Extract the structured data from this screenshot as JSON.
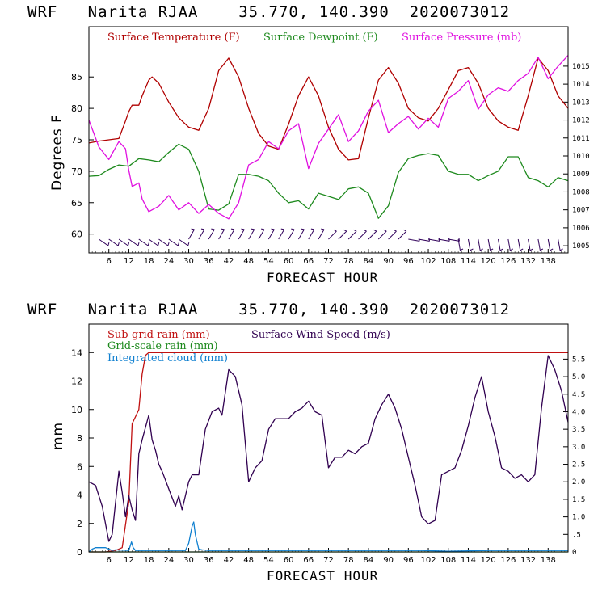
{
  "colors": {
    "temperature": "#b00000",
    "dewpoint": "#1e8a1e",
    "pressure": "#e010e0",
    "subgrid": "#c01010",
    "gridscale": "#1e8a1e",
    "cloud": "#1080d0",
    "wind": "#300050",
    "wind_barb": "#30005a"
  },
  "chart_data": [
    {
      "type": "line",
      "title": "WRF   Narita RJAA    35.770, 140.390  2020073012",
      "xlabel": "FORECAST HOUR",
      "ylabel": "Degrees F",
      "xlim": [
        0,
        144
      ],
      "ylim": [
        57,
        93
      ],
      "xticks": [
        6,
        12,
        18,
        24,
        30,
        36,
        42,
        48,
        54,
        60,
        66,
        72,
        78,
        84,
        90,
        96,
        102,
        108,
        114,
        120,
        126,
        132,
        138
      ],
      "yticks": [
        60,
        65,
        70,
        75,
        80,
        85
      ],
      "y2lim": [
        1004.6,
        1017.2
      ],
      "y2ticks": [
        1005,
        1006,
        1007,
        1008,
        1009,
        1010,
        1011,
        1012,
        1013,
        1014,
        1015
      ],
      "legend": [
        "Surface Temperature (F)",
        "Surface Dewpoint (F)",
        "Surface Pressure (mb)"
      ],
      "series": [
        {
          "name": "Surface Temperature (F)",
          "axis": "left",
          "x": [
            0,
            3,
            6,
            9,
            11,
            12,
            13,
            15,
            16,
            18,
            19,
            21,
            24,
            27,
            30,
            33,
            36,
            39,
            42,
            45,
            48,
            51,
            54,
            57,
            60,
            63,
            66,
            69,
            72,
            75,
            78,
            81,
            84,
            87,
            90,
            93,
            96,
            99,
            102,
            105,
            108,
            111,
            114,
            117,
            120,
            123,
            126,
            129,
            132,
            135,
            138,
            141,
            144
          ],
          "y": [
            74.5,
            74.8,
            75,
            75.2,
            78,
            79.5,
            80.5,
            80.5,
            82,
            84.5,
            85,
            84,
            81,
            78.5,
            77,
            76.5,
            80,
            86,
            88,
            85,
            80,
            76,
            74,
            73.5,
            77.5,
            82,
            85,
            82,
            77,
            73.5,
            71.8,
            72,
            78.5,
            84.5,
            86.5,
            84,
            80,
            78.5,
            78,
            80,
            83,
            86,
            86.5,
            84,
            80,
            78,
            77,
            76.5,
            82,
            88,
            86,
            82,
            80
          ]
        },
        {
          "name": "Surface Dewpoint (F)",
          "axis": "left",
          "x": [
            0,
            3,
            6,
            9,
            12,
            15,
            18,
            21,
            24,
            27,
            30,
            33,
            36,
            39,
            42,
            45,
            48,
            51,
            54,
            57,
            60,
            63,
            66,
            69,
            72,
            75,
            78,
            81,
            84,
            87,
            90,
            93,
            96,
            99,
            102,
            105,
            108,
            111,
            114,
            117,
            120,
            123,
            126,
            129,
            132,
            135,
            138,
            141,
            144
          ],
          "y": [
            69.2,
            69.3,
            70.3,
            71,
            70.8,
            72,
            71.8,
            71.5,
            73,
            74.3,
            73.5,
            70,
            64,
            63.8,
            64.8,
            69.5,
            69.5,
            69.2,
            68.5,
            66.5,
            65,
            65.3,
            64,
            66.5,
            66,
            65.5,
            67.2,
            67.5,
            66.5,
            62.5,
            64.5,
            69.8,
            72,
            72.5,
            72.8,
            72.5,
            70,
            69.5,
            69.5,
            68.5,
            69.3,
            70,
            72.3,
            72.3,
            69,
            68.5,
            67.5,
            69,
            68.5
          ]
        },
        {
          "name": "Surface Pressure (mb)",
          "axis": "right",
          "x": [
            0,
            3,
            6,
            9,
            11,
            12,
            13,
            15,
            16,
            18,
            21,
            24,
            27,
            30,
            33,
            36,
            39,
            42,
            45,
            48,
            51,
            54,
            57,
            60,
            63,
            66,
            69,
            72,
            75,
            78,
            81,
            84,
            87,
            90,
            93,
            96,
            99,
            102,
            105,
            108,
            111,
            114,
            117,
            120,
            123,
            126,
            129,
            132,
            135,
            138,
            141,
            144
          ],
          "y": [
            1012,
            1010.5,
            1009.8,
            1010.8,
            1010.4,
            1009.2,
            1008.3,
            1008.5,
            1007.6,
            1006.9,
            1007.2,
            1007.8,
            1007,
            1007.4,
            1006.8,
            1007.3,
            1006.8,
            1006.5,
            1007.4,
            1009.5,
            1009.8,
            1010.8,
            1010.4,
            1011.4,
            1011.8,
            1009.3,
            1010.7,
            1011.5,
            1012.3,
            1010.8,
            1011.4,
            1012.5,
            1013.1,
            1011.3,
            1011.8,
            1012.2,
            1011.5,
            1012.1,
            1011.6,
            1013.2,
            1013.6,
            1014.2,
            1012.6,
            1013.4,
            1013.8,
            1013.6,
            1014.2,
            1014.6,
            1015.5,
            1014.3,
            1015,
            1015.6
          ]
        }
      ]
    },
    {
      "type": "line",
      "title": "WRF   Narita RJAA    35.770, 140.390  2020073012",
      "xlabel": "FORECAST HOUR",
      "ylabel": "mm",
      "xlim": [
        0,
        144
      ],
      "ylim": [
        0,
        16
      ],
      "xticks": [
        6,
        12,
        18,
        24,
        30,
        36,
        42,
        48,
        54,
        60,
        66,
        72,
        78,
        84,
        90,
        96,
        102,
        108,
        114,
        120,
        126,
        132,
        138
      ],
      "yticks": [
        0,
        2,
        4,
        6,
        8,
        10,
        12,
        14
      ],
      "y2lim": [
        0,
        6.5
      ],
      "y2ticks": [
        "0",
        ".5",
        "1.0",
        "1.5",
        "2.0",
        "2.5",
        "3.0",
        "3.5",
        "4.0",
        "4.5",
        "5.0",
        "5.5"
      ],
      "legend": [
        "Sub-grid rain (mm)",
        "Grid-scale rain (mm)",
        "Integrated cloud (mm)",
        "Surface Wind Speed (m/s)"
      ],
      "series": [
        {
          "name": "Sub-grid rain (mm)",
          "axis": "left",
          "x": [
            0,
            5,
            8,
            10,
            12,
            13,
            14,
            15,
            16,
            17,
            18,
            144
          ],
          "y": [
            0,
            0,
            0.1,
            0.3,
            3.5,
            9,
            9.5,
            10,
            12.5,
            13.8,
            14,
            14
          ]
        },
        {
          "name": "Grid-scale rain (mm)",
          "axis": "left",
          "x": [
            0,
            144
          ],
          "y": [
            0,
            0
          ]
        },
        {
          "name": "Integrated cloud (mm)",
          "axis": "left",
          "x": [
            0,
            1,
            2,
            5,
            6,
            7,
            8,
            12,
            12.8,
            13.3,
            14,
            15,
            29,
            30,
            31,
            31.5,
            32,
            33,
            34,
            36,
            48,
            60,
            84,
            100,
            108,
            120,
            144
          ],
          "y": [
            0,
            0.2,
            0.3,
            0.3,
            0.2,
            0.1,
            0.15,
            0.1,
            0.7,
            0.3,
            0.1,
            0.1,
            0.1,
            0.6,
            1.8,
            2.1,
            1.2,
            0.2,
            0.15,
            0.1,
            0.1,
            0.1,
            0.1,
            0.1,
            0.05,
            0.1,
            0.1
          ]
        },
        {
          "name": "Surface Wind Speed (m/s)",
          "axis": "right",
          "x": [
            0,
            2,
            4,
            6,
            7,
            8,
            9,
            10,
            11,
            12,
            13,
            14,
            15,
            16,
            18,
            19,
            20,
            21,
            22,
            24,
            26,
            27,
            28,
            29,
            30,
            31,
            33,
            35,
            37,
            39,
            40,
            42,
            44,
            46,
            48,
            50,
            52,
            54,
            56,
            58,
            60,
            62,
            64,
            66,
            68,
            70,
            72,
            74,
            76,
            78,
            80,
            82,
            84,
            86,
            88,
            90,
            92,
            94,
            96,
            98,
            100,
            102,
            104,
            106,
            108,
            110,
            112,
            114,
            116,
            118,
            120,
            122,
            124,
            126,
            128,
            130,
            132,
            134,
            136,
            138,
            140,
            142,
            144
          ],
          "y": [
            2,
            1.9,
            1.3,
            0.3,
            0.5,
            1.4,
            2.3,
            1.7,
            1,
            1.6,
            1.2,
            0.9,
            2.8,
            3.2,
            3.9,
            3.2,
            2.9,
            2.5,
            2.3,
            1.8,
            1.3,
            1.6,
            1.2,
            1.6,
            2,
            2.2,
            2.2,
            3.5,
            4,
            4.1,
            3.9,
            5.2,
            5,
            4.2,
            2,
            2.4,
            2.6,
            3.5,
            3.8,
            3.8,
            3.8,
            4,
            4.1,
            4.3,
            4,
            3.9,
            2.4,
            2.7,
            2.7,
            2.9,
            2.8,
            3,
            3.1,
            3.8,
            4.2,
            4.5,
            4.1,
            3.5,
            2.7,
            1.9,
            1,
            0.8,
            0.9,
            2.2,
            2.3,
            2.4,
            2.9,
            3.6,
            4.4,
            5,
            4,
            3.3,
            2.4,
            2.3,
            2.1,
            2.2,
            2,
            2.2,
            4.1,
            5.6,
            5.2,
            4.6,
            3.7
          ]
        }
      ]
    }
  ]
}
